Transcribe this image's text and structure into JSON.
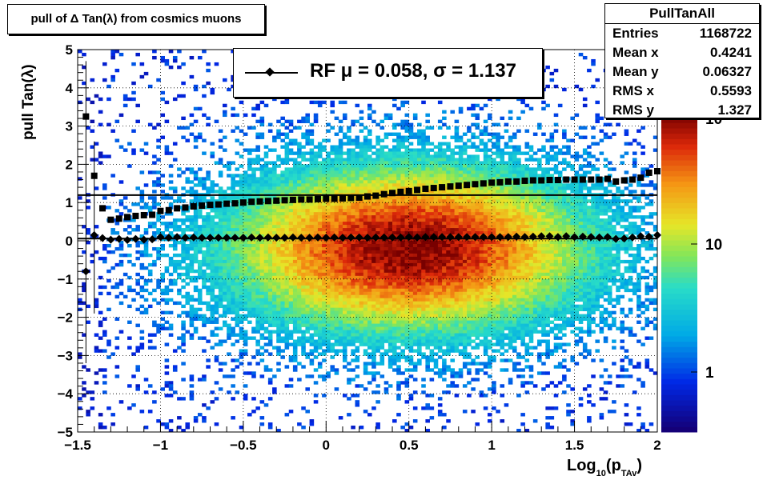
{
  "chart_data": {
    "type": "heatmap",
    "title": "pull of Δ Tan(λ) from cosmics muons",
    "xlabel_main": "Log",
    "xlabel_sub1": "10",
    "xlabel_paren_open": "(p",
    "xlabel_sub2": "TAv",
    "xlabel_paren_close": ")",
    "ylabel": "pull Tan(λ)",
    "xlim": [
      -1.5,
      2
    ],
    "ylim": [
      -5,
      5
    ],
    "x_ticks": [
      "−1.5",
      "−1",
      "−0.5",
      "0",
      "0.5",
      "1",
      "1.5",
      "2"
    ],
    "y_ticks": [
      "−5",
      "−4",
      "−3",
      "−2",
      "−1",
      "0",
      "1",
      "2",
      "3",
      "4",
      "5"
    ],
    "grid": true,
    "z_scale": "log",
    "colorbar_ticks": [
      "1",
      "10",
      "10"
    ],
    "density_peak": {
      "x": 0.5,
      "y": -0.2
    },
    "series": [
      {
        "name": "RF",
        "marker": "diamond",
        "x": [
          -1.45,
          -1.4,
          -1.35,
          -1.3,
          -1.25,
          -1.2,
          -1.15,
          -1.1,
          -1.05,
          -1.0,
          -0.95,
          -0.9,
          -0.85,
          -0.8,
          -0.75,
          -0.7,
          -0.65,
          -0.6,
          -0.55,
          -0.5,
          -0.45,
          -0.4,
          -0.35,
          -0.3,
          -0.25,
          -0.2,
          -0.15,
          -0.1,
          -0.05,
          0.0,
          0.05,
          0.1,
          0.15,
          0.2,
          0.25,
          0.3,
          0.35,
          0.4,
          0.45,
          0.5,
          0.55,
          0.6,
          0.65,
          0.7,
          0.75,
          0.8,
          0.85,
          0.9,
          0.95,
          1.0,
          1.05,
          1.1,
          1.15,
          1.2,
          1.25,
          1.3,
          1.35,
          1.4,
          1.45,
          1.5,
          1.55,
          1.6,
          1.65,
          1.7,
          1.75,
          1.8,
          1.85,
          1.9,
          1.95,
          2.0
        ],
        "y": [
          -0.8,
          0.15,
          0.07,
          0.03,
          0.05,
          0.02,
          0.05,
          0.03,
          0.04,
          0.1,
          0.08,
          0.1,
          0.08,
          0.09,
          0.08,
          0.08,
          0.08,
          0.08,
          0.08,
          0.08,
          0.09,
          0.08,
          0.09,
          0.08,
          0.08,
          0.09,
          0.08,
          0.08,
          0.09,
          0.08,
          0.09,
          0.08,
          0.09,
          0.09,
          0.08,
          0.09,
          0.09,
          0.09,
          0.09,
          0.1,
          0.09,
          0.1,
          0.1,
          0.1,
          0.1,
          0.1,
          0.1,
          0.1,
          0.1,
          0.1,
          0.1,
          0.1,
          0.11,
          0.1,
          0.11,
          0.12,
          0.12,
          0.1,
          0.12,
          0.1,
          0.11,
          0.1,
          0.09,
          0.1,
          0.05,
          0.06,
          0.09,
          0.12,
          0.11,
          0.15
        ]
      },
      {
        "name": "RMS",
        "marker": "square",
        "x": [
          -1.45,
          -1.4,
          -1.35,
          -1.3,
          -1.25,
          -1.2,
          -1.15,
          -1.1,
          -1.05,
          -1.0,
          -0.95,
          -0.9,
          -0.85,
          -0.8,
          -0.75,
          -0.7,
          -0.65,
          -0.6,
          -0.55,
          -0.5,
          -0.45,
          -0.4,
          -0.35,
          -0.3,
          -0.25,
          -0.2,
          -0.15,
          -0.1,
          -0.05,
          0.0,
          0.05,
          0.1,
          0.15,
          0.2,
          0.25,
          0.3,
          0.35,
          0.4,
          0.45,
          0.5,
          0.55,
          0.6,
          0.65,
          0.7,
          0.75,
          0.8,
          0.85,
          0.9,
          0.95,
          1.0,
          1.05,
          1.1,
          1.15,
          1.2,
          1.25,
          1.3,
          1.35,
          1.4,
          1.45,
          1.5,
          1.55,
          1.6,
          1.65,
          1.7,
          1.75,
          1.8,
          1.85,
          1.9,
          1.95,
          2.0
        ],
        "y": [
          3.25,
          1.7,
          0.85,
          0.55,
          0.58,
          0.62,
          0.65,
          0.67,
          0.68,
          0.78,
          0.8,
          0.85,
          0.87,
          0.9,
          0.92,
          0.94,
          0.95,
          0.97,
          0.98,
          1.0,
          1.02,
          1.03,
          1.04,
          1.05,
          1.06,
          1.07,
          1.08,
          1.08,
          1.09,
          1.1,
          1.1,
          1.11,
          1.12,
          1.13,
          1.16,
          1.18,
          1.22,
          1.25,
          1.28,
          1.3,
          1.33,
          1.36,
          1.38,
          1.4,
          1.42,
          1.44,
          1.46,
          1.48,
          1.5,
          1.52,
          1.53,
          1.55,
          1.55,
          1.57,
          1.58,
          1.58,
          1.59,
          1.59,
          1.6,
          1.6,
          1.6,
          1.6,
          1.6,
          1.62,
          1.55,
          1.58,
          1.6,
          1.65,
          1.78,
          1.82
        ]
      }
    ],
    "reference_lines": [
      {
        "y": 0.058
      },
      {
        "y": 1.195
      }
    ]
  },
  "legend": {
    "text": "RF μ =  0.058, σ =   1.137"
  },
  "stats": {
    "title": "PullTanAll",
    "rows": [
      {
        "label": "Entries",
        "value": "1168722"
      },
      {
        "label": "Mean x",
        "value": "0.4241"
      },
      {
        "label": "Mean y",
        "value": "0.06327"
      },
      {
        "label": "RMS x",
        "value": "0.5593"
      },
      {
        "label": "RMS y",
        "value": "1.327"
      }
    ]
  }
}
